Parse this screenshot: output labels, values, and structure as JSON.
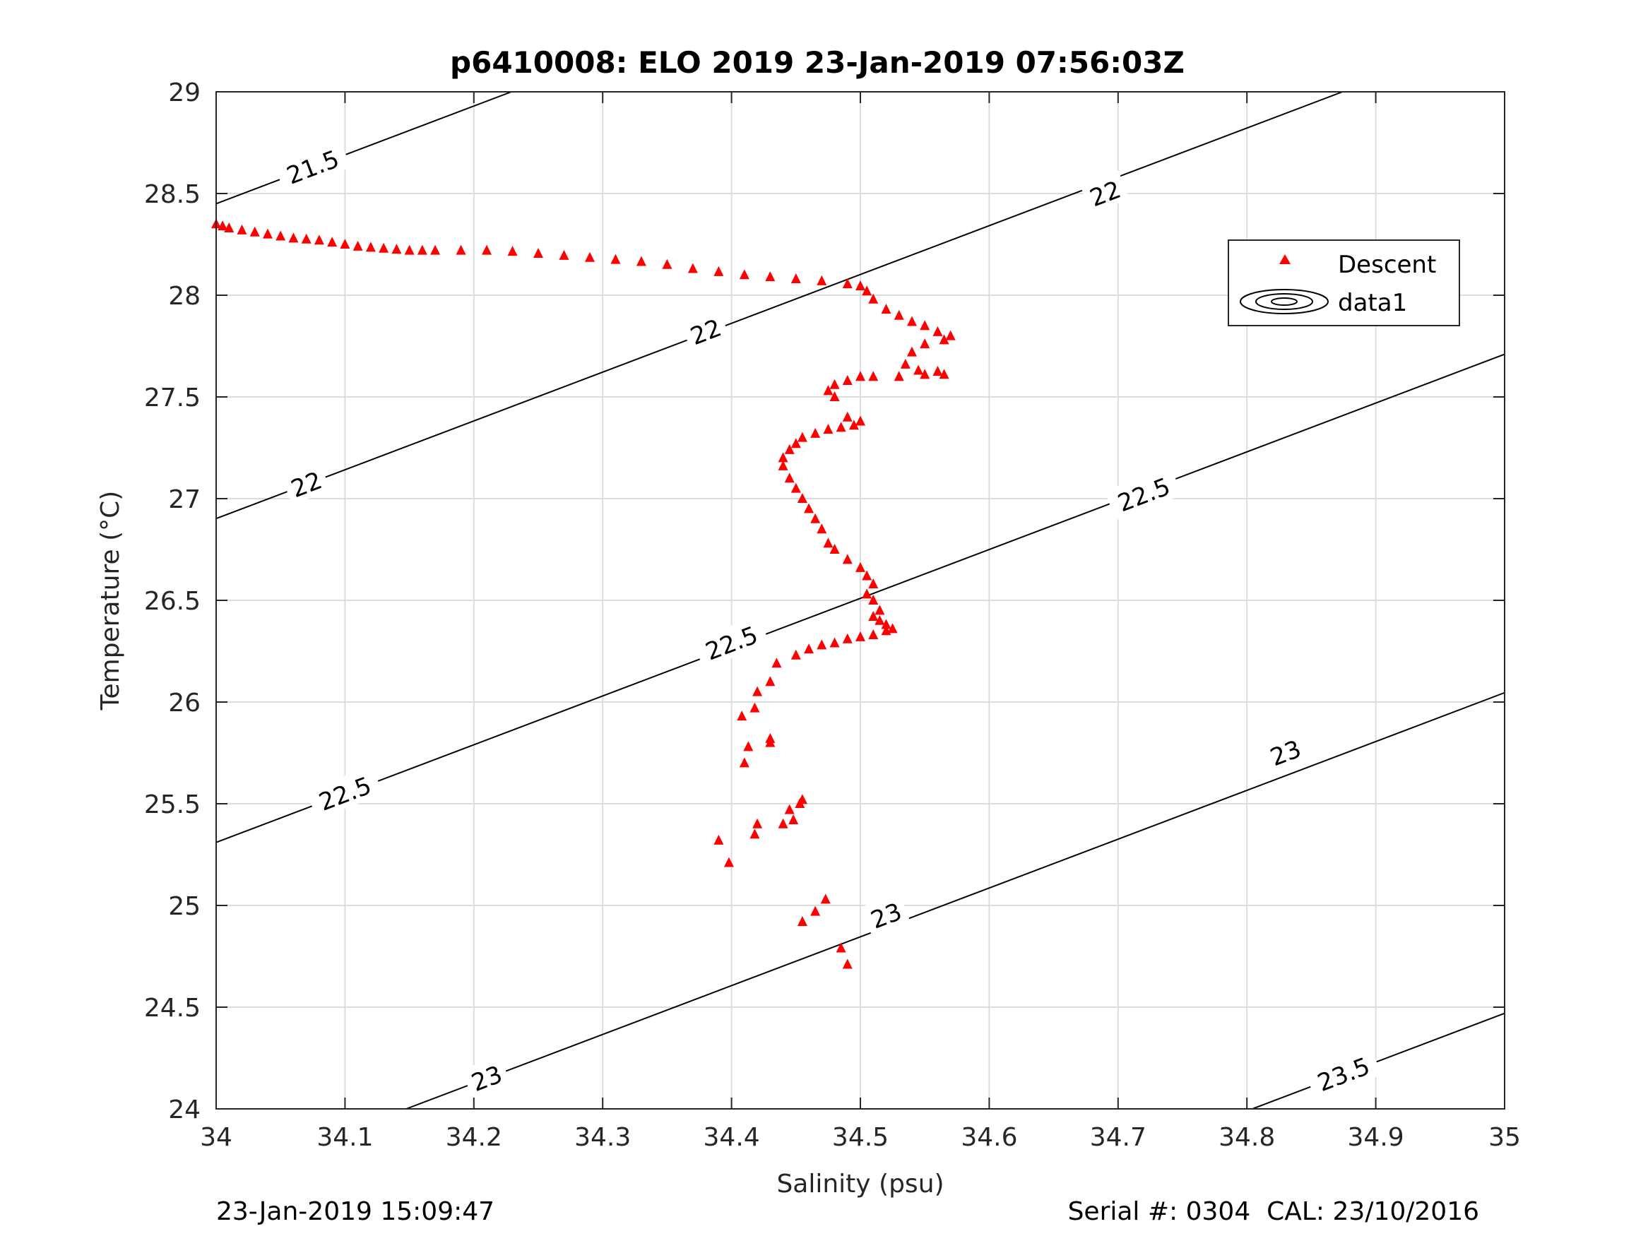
{
  "chart_data": {
    "type": "scatter",
    "title": "p6410008: ELO 2019 23-Jan-2019 07:56:03Z",
    "xlabel": "Salinity (psu)",
    "ylabel": "Temperature (°C)",
    "xlim": [
      34,
      35
    ],
    "ylim": [
      24,
      29
    ],
    "xticks": [
      34,
      34.1,
      34.2,
      34.3,
      34.4,
      34.5,
      34.6,
      34.7,
      34.8,
      34.9,
      35
    ],
    "xtick_labels": [
      "34",
      "34.1",
      "34.2",
      "34.3",
      "34.4",
      "34.5",
      "34.6",
      "34.7",
      "34.8",
      "34.9",
      "35"
    ],
    "yticks": [
      24,
      24.5,
      25,
      25.5,
      26,
      26.5,
      27,
      27.5,
      28,
      28.5,
      29
    ],
    "ytick_labels": [
      "24",
      "24.5",
      "25",
      "25.5",
      "26",
      "26.5",
      "27",
      "27.5",
      "28",
      "28.5",
      "29"
    ],
    "grid": true,
    "legend": {
      "placement": "top-right",
      "entries": [
        "Descent",
        "data1"
      ]
    },
    "series": [
      {
        "name": "Descent",
        "color": "#ff0000",
        "marker": "triangle",
        "x": [
          34.0,
          34.005,
          34.01,
          34.02,
          34.03,
          34.04,
          34.05,
          34.06,
          34.07,
          34.08,
          34.09,
          34.1,
          34.11,
          34.12,
          34.13,
          34.14,
          34.15,
          34.16,
          34.17,
          34.19,
          34.21,
          34.23,
          34.25,
          34.27,
          34.29,
          34.31,
          34.33,
          34.35,
          34.37,
          34.39,
          34.41,
          34.43,
          34.45,
          34.47,
          34.49,
          34.5,
          34.505,
          34.51,
          34.52,
          34.53,
          34.54,
          34.55,
          34.56,
          34.57,
          34.565,
          34.55,
          34.54,
          34.535,
          34.545,
          34.56,
          34.565,
          34.55,
          34.53,
          34.51,
          34.5,
          34.49,
          34.48,
          34.475,
          34.48,
          34.49,
          34.5,
          34.495,
          34.485,
          34.475,
          34.465,
          34.455,
          34.45,
          34.445,
          34.44,
          34.44,
          34.445,
          34.45,
          34.455,
          34.46,
          34.465,
          34.47,
          34.475,
          34.48,
          34.49,
          34.5,
          34.505,
          34.51,
          34.505,
          34.51,
          34.515,
          34.51,
          34.515,
          34.52,
          34.525,
          34.52,
          34.51,
          34.5,
          34.49,
          34.48,
          34.47,
          34.46,
          34.45,
          34.435,
          34.43,
          34.42,
          34.418,
          34.408,
          34.413,
          34.41,
          34.43,
          34.43,
          34.453,
          34.455,
          34.445,
          34.448,
          34.44,
          34.42,
          34.418,
          34.39,
          34.398,
          34.473,
          34.465,
          34.455,
          34.485,
          34.49
        ],
        "y": [
          28.35,
          28.34,
          28.33,
          28.32,
          28.31,
          28.3,
          28.29,
          28.28,
          28.275,
          28.27,
          28.26,
          28.25,
          28.24,
          28.235,
          28.23,
          28.225,
          28.22,
          28.22,
          28.22,
          28.22,
          28.22,
          28.215,
          28.205,
          28.195,
          28.185,
          28.175,
          28.165,
          28.15,
          28.13,
          28.115,
          28.1,
          28.09,
          28.08,
          28.07,
          28.055,
          28.045,
          28.02,
          27.98,
          27.93,
          27.9,
          27.87,
          27.85,
          27.82,
          27.8,
          27.78,
          27.76,
          27.72,
          27.66,
          27.63,
          27.625,
          27.61,
          27.61,
          27.6,
          27.6,
          27.6,
          27.58,
          27.56,
          27.53,
          27.5,
          27.4,
          27.38,
          27.36,
          27.35,
          27.34,
          27.32,
          27.3,
          27.27,
          27.24,
          27.2,
          27.16,
          27.1,
          27.05,
          27.0,
          26.95,
          26.9,
          26.85,
          26.78,
          26.75,
          26.7,
          26.66,
          26.62,
          26.58,
          26.53,
          26.5,
          26.45,
          26.42,
          26.4,
          26.38,
          26.36,
          26.35,
          26.33,
          26.32,
          26.31,
          26.29,
          26.28,
          26.26,
          26.23,
          26.19,
          26.1,
          26.05,
          25.97,
          25.93,
          25.78,
          25.7,
          25.8,
          25.82,
          25.5,
          25.52,
          25.47,
          25.42,
          25.4,
          25.4,
          25.35,
          25.32,
          25.21,
          25.03,
          24.97,
          24.92,
          24.79,
          24.71
        ]
      }
    ],
    "isopycnals": [
      {
        "label": "21.5",
        "label_positions": [
          [
            34.075,
            28.63
          ]
        ]
      },
      {
        "label": "22",
        "label_positions": [
          [
            34.07,
            27.07
          ],
          [
            34.38,
            27.82
          ],
          [
            34.69,
            28.5
          ]
        ]
      },
      {
        "label": "22.5",
        "label_positions": [
          [
            34.1,
            25.55
          ],
          [
            34.4,
            26.29
          ],
          [
            34.72,
            27.02
          ]
        ]
      },
      {
        "label": "23",
        "label_positions": [
          [
            34.21,
            24.15
          ],
          [
            34.52,
            24.95
          ],
          [
            34.83,
            25.75
          ]
        ]
      },
      {
        "label": "23.5",
        "label_positions": [
          [
            34.875,
            24.17
          ]
        ]
      }
    ]
  },
  "footer": {
    "left": "23-Jan-2019 15:09:47",
    "right": "Serial #: 0304  CAL: 23/10/2016"
  }
}
